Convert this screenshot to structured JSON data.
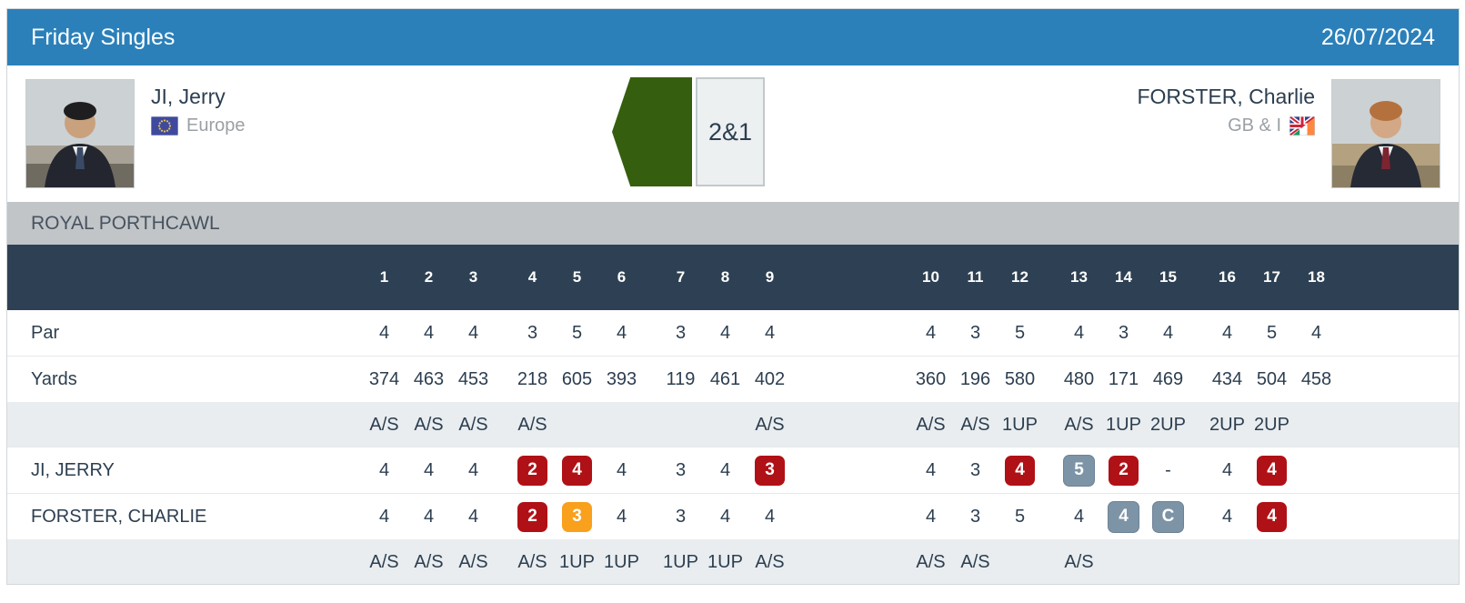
{
  "header": {
    "title": "Friday Singles",
    "date": "26/07/2024"
  },
  "match": {
    "result": "2&1",
    "winner_arrow_direction": "left",
    "player_left": {
      "name": "JI, Jerry",
      "team": "Europe",
      "flag": "europe-flag"
    },
    "player_right": {
      "name": "FORSTER, Charlie",
      "team": "GB & I",
      "flag": "gb-and-i-flag"
    }
  },
  "course": {
    "name": "ROYAL PORTHCAWL"
  },
  "scorecard": {
    "holes": [
      "1",
      "2",
      "3",
      "4",
      "5",
      "6",
      "7",
      "8",
      "9",
      "10",
      "11",
      "12",
      "13",
      "14",
      "15",
      "16",
      "17",
      "18"
    ],
    "rows": [
      {
        "name": "par-row",
        "label": "Par",
        "shade": false,
        "values": [
          "4",
          "4",
          "4",
          "3",
          "5",
          "4",
          "3",
          "4",
          "4",
          "4",
          "3",
          "5",
          "4",
          "3",
          "4",
          "4",
          "5",
          "4"
        ]
      },
      {
        "name": "yards-row",
        "label": "Yards",
        "shade": false,
        "values": [
          "374",
          "463",
          "453",
          "218",
          "605",
          "393",
          "119",
          "461",
          "402",
          "360",
          "196",
          "580",
          "480",
          "171",
          "469",
          "434",
          "504",
          "458"
        ]
      },
      {
        "name": "status-top-row",
        "label": "",
        "shade": true,
        "values": [
          "A/S",
          "A/S",
          "A/S",
          "A/S",
          "",
          "",
          "",
          "",
          "A/S",
          "A/S",
          "A/S",
          "1UP",
          "A/S",
          "1UP",
          "2UP",
          "2UP",
          "2UP",
          ""
        ]
      },
      {
        "name": "player1-row",
        "label": "JI, JERRY",
        "shade": false,
        "values": [
          "4",
          "4",
          "4",
          {
            "v": "2",
            "box": "red"
          },
          {
            "v": "4",
            "box": "red"
          },
          "4",
          "3",
          "4",
          {
            "v": "3",
            "box": "red"
          },
          "4",
          "3",
          {
            "v": "4",
            "box": "red"
          },
          {
            "v": "5",
            "box": "gray"
          },
          {
            "v": "2",
            "box": "red"
          },
          "-",
          "4",
          {
            "v": "4",
            "box": "red"
          },
          ""
        ]
      },
      {
        "name": "player2-row",
        "label": "FORSTER, CHARLIE",
        "shade": false,
        "values": [
          "4",
          "4",
          "4",
          {
            "v": "2",
            "box": "red"
          },
          {
            "v": "3",
            "box": "orange"
          },
          "4",
          "3",
          "4",
          "4",
          "4",
          "3",
          "5",
          "4",
          {
            "v": "4",
            "box": "gray"
          },
          {
            "v": "C",
            "box": "gray"
          },
          "4",
          {
            "v": "4",
            "box": "red"
          },
          ""
        ]
      },
      {
        "name": "status-bottom-row",
        "label": "",
        "shade": true,
        "values": [
          "A/S",
          "A/S",
          "A/S",
          "A/S",
          "1UP",
          "1UP",
          "1UP",
          "1UP",
          "A/S",
          "A/S",
          "A/S",
          "",
          "A/S",
          "",
          "",
          "",
          "",
          ""
        ]
      }
    ]
  },
  "colors": {
    "topbar_blue": "#2b80ba",
    "navy_text": "#2c3e50",
    "table_header_navy": "#2e4154",
    "course_bar_silver": "#c1c5c8",
    "status_row_bg": "#e9edef",
    "score_red": "#b01116",
    "score_orange": "#f9a01c",
    "score_gray": "#7d94a7",
    "winner_green": "#355f0e"
  }
}
